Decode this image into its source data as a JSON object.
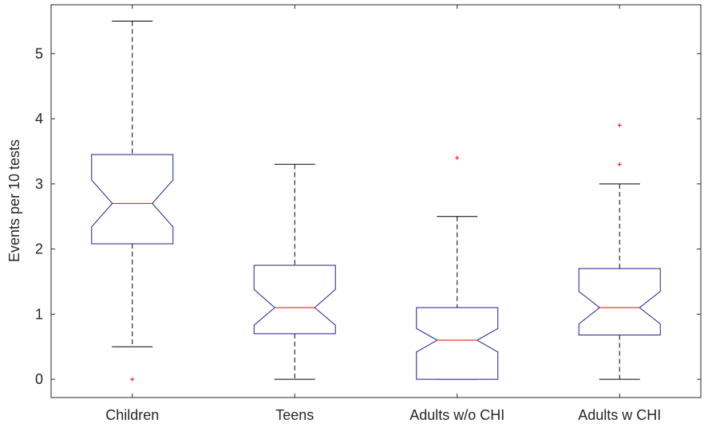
{
  "chart_data": {
    "type": "boxplot",
    "notched": true,
    "title": "",
    "xlabel": "",
    "ylabel": "Events per 10 tests",
    "ylim": [
      -0.28,
      5.75
    ],
    "yticks": [
      0,
      1,
      2,
      3,
      4,
      5
    ],
    "categories": [
      "Children",
      "Teens",
      "Adults w/o CHI",
      "Adults w CHI"
    ],
    "boxes": [
      {
        "category": "Children",
        "whisker_low": 0.5,
        "q1": 2.08,
        "median": 2.7,
        "q3": 3.45,
        "whisker_high": 5.5,
        "notch_low": 2.34,
        "notch_high": 3.06,
        "outliers": [
          0
        ]
      },
      {
        "category": "Teens",
        "whisker_low": 0,
        "q1": 0.7,
        "median": 1.1,
        "q3": 1.75,
        "whisker_high": 3.3,
        "notch_low": 0.83,
        "notch_high": 1.38,
        "outliers": []
      },
      {
        "category": "Adults w/o CHI",
        "whisker_low": 0,
        "q1": 0,
        "median": 0.6,
        "q3": 1.1,
        "whisker_high": 2.5,
        "notch_low": 0.42,
        "notch_high": 0.78,
        "outliers": [
          3.4
        ]
      },
      {
        "category": "Adults w CHI",
        "whisker_low": 0,
        "q1": 0.68,
        "median": 1.1,
        "q3": 1.7,
        "whisker_high": 3.0,
        "notch_low": 0.85,
        "notch_high": 1.35,
        "outliers": [
          3.3,
          3.9
        ]
      }
    ],
    "colors": {
      "box": "#1f1f8f",
      "median": "#ff0000",
      "whisker": "#000000",
      "outlier": "#ff0000",
      "axis": "#262626"
    },
    "grid": false,
    "legend": "none"
  }
}
